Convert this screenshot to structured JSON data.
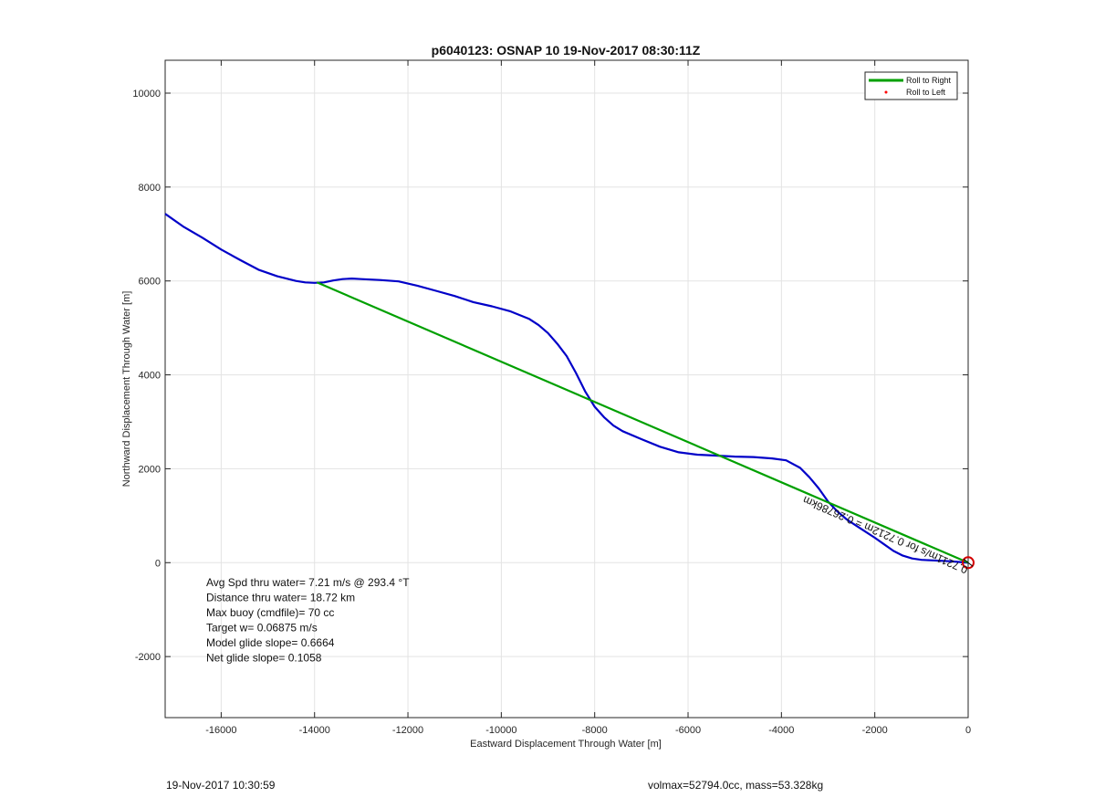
{
  "chart_data": {
    "type": "line",
    "title": "p6040123: OSNAP 10 19-Nov-2017 08:30:11Z",
    "xlabel": "Eastward Displacement Through Water [m]",
    "ylabel": "Northward Displacement Through Water [m]",
    "xlim": [
      -17200,
      0
    ],
    "ylim": [
      -3300,
      10700
    ],
    "xticks": [
      -16000,
      -14000,
      -12000,
      -10000,
      -8000,
      -6000,
      -4000,
      -2000,
      0
    ],
    "yticks": [
      -2000,
      0,
      2000,
      4000,
      6000,
      8000,
      10000
    ],
    "grid": true,
    "legend_position": "top-right",
    "legend": [
      {
        "label": "Roll to Right",
        "color": "#00a000",
        "marker": "line"
      },
      {
        "label": "Roll to Left",
        "color": "#ff0000",
        "marker": "dot"
      }
    ],
    "series": [
      {
        "color": "#0000c8",
        "x": [
          -17200,
          -16800,
          -16400,
          -16000,
          -15600,
          -15200,
          -14800,
          -14400,
          -14200,
          -14000,
          -13800,
          -13600,
          -13400,
          -13200,
          -13000,
          -12600,
          -12200,
          -11800,
          -11400,
          -11000,
          -10600,
          -10200,
          -9800,
          -9400,
          -9200,
          -9000,
          -8800,
          -8600,
          -8400,
          -8200,
          -8000,
          -7800,
          -7600,
          -7400,
          -7000,
          -6600,
          -6200,
          -5800,
          -5400,
          -5000,
          -4600,
          -4200,
          -3900,
          -3600,
          -3400,
          -3200,
          -3000,
          -2800,
          -2600,
          -2400,
          -2200,
          -2000,
          -1800,
          -1600,
          -1400,
          -1200,
          -1000,
          -800,
          -600,
          -400,
          -200,
          -100,
          0
        ],
        "y": [
          7430,
          7150,
          6920,
          6670,
          6450,
          6240,
          6100,
          6000,
          5970,
          5960,
          5970,
          6010,
          6040,
          6050,
          6040,
          6020,
          5990,
          5900,
          5790,
          5680,
          5550,
          5460,
          5350,
          5190,
          5060,
          4890,
          4660,
          4400,
          4040,
          3640,
          3320,
          3100,
          2920,
          2800,
          2630,
          2470,
          2350,
          2300,
          2280,
          2260,
          2250,
          2220,
          2180,
          2020,
          1820,
          1580,
          1300,
          1090,
          920,
          790,
          660,
          530,
          390,
          250,
          150,
          90,
          60,
          50,
          40,
          30,
          15,
          5,
          0
        ]
      },
      {
        "color": "#00a000",
        "x": [
          -13950,
          0
        ],
        "y": [
          5970,
          0
        ]
      }
    ],
    "target_marker": {
      "x": 0,
      "y": 0,
      "color": "#d40000"
    },
    "rotated_annotation": "0.7211m/s for 0.7212m = 0.26786km",
    "annotations": [
      "Avg Spd thru water=  7.21 m/s @ 293.4 °T",
      "Distance thru water= 18.72 km",
      "Max buoy (cmdfile)= 70 cc",
      "Target w= 0.06875 m/s",
      "Model glide slope= 0.6664",
      "Net glide slope= 0.1058"
    ]
  },
  "footer": {
    "timestamp": "19-Nov-2017 10:30:59",
    "info": "volmax=52794.0cc, mass=53.328kg"
  }
}
